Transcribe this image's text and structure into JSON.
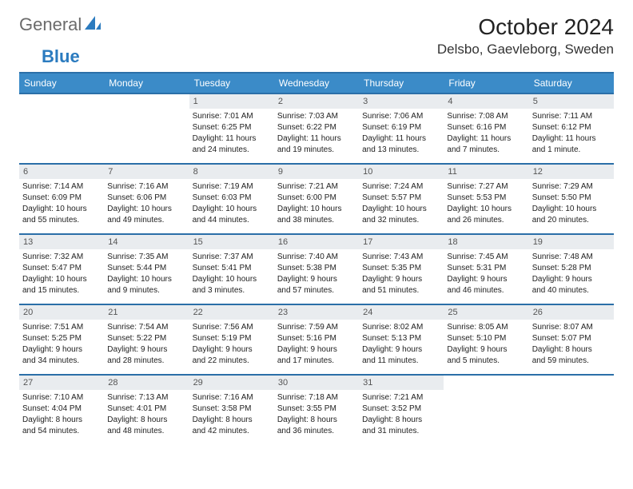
{
  "brand": {
    "name_part1": "General",
    "name_part2": "Blue"
  },
  "header": {
    "month_title": "October 2024",
    "location": "Delsbo, Gaevleborg, Sweden"
  },
  "colors": {
    "header_bg": "#3b8bc8",
    "header_border": "#2b6fa8",
    "daynum_bg": "#e9ecef",
    "logo_gray": "#6b6b6b",
    "logo_blue": "#2b7bbf"
  },
  "weekdays": [
    "Sunday",
    "Monday",
    "Tuesday",
    "Wednesday",
    "Thursday",
    "Friday",
    "Saturday"
  ],
  "weeks": [
    [
      null,
      null,
      {
        "n": "1",
        "sunrise": "Sunrise: 7:01 AM",
        "sunset": "Sunset: 6:25 PM",
        "d1": "Daylight: 11 hours",
        "d2": "and 24 minutes."
      },
      {
        "n": "2",
        "sunrise": "Sunrise: 7:03 AM",
        "sunset": "Sunset: 6:22 PM",
        "d1": "Daylight: 11 hours",
        "d2": "and 19 minutes."
      },
      {
        "n": "3",
        "sunrise": "Sunrise: 7:06 AM",
        "sunset": "Sunset: 6:19 PM",
        "d1": "Daylight: 11 hours",
        "d2": "and 13 minutes."
      },
      {
        "n": "4",
        "sunrise": "Sunrise: 7:08 AM",
        "sunset": "Sunset: 6:16 PM",
        "d1": "Daylight: 11 hours",
        "d2": "and 7 minutes."
      },
      {
        "n": "5",
        "sunrise": "Sunrise: 7:11 AM",
        "sunset": "Sunset: 6:12 PM",
        "d1": "Daylight: 11 hours",
        "d2": "and 1 minute."
      }
    ],
    [
      {
        "n": "6",
        "sunrise": "Sunrise: 7:14 AM",
        "sunset": "Sunset: 6:09 PM",
        "d1": "Daylight: 10 hours",
        "d2": "and 55 minutes."
      },
      {
        "n": "7",
        "sunrise": "Sunrise: 7:16 AM",
        "sunset": "Sunset: 6:06 PM",
        "d1": "Daylight: 10 hours",
        "d2": "and 49 minutes."
      },
      {
        "n": "8",
        "sunrise": "Sunrise: 7:19 AM",
        "sunset": "Sunset: 6:03 PM",
        "d1": "Daylight: 10 hours",
        "d2": "and 44 minutes."
      },
      {
        "n": "9",
        "sunrise": "Sunrise: 7:21 AM",
        "sunset": "Sunset: 6:00 PM",
        "d1": "Daylight: 10 hours",
        "d2": "and 38 minutes."
      },
      {
        "n": "10",
        "sunrise": "Sunrise: 7:24 AM",
        "sunset": "Sunset: 5:57 PM",
        "d1": "Daylight: 10 hours",
        "d2": "and 32 minutes."
      },
      {
        "n": "11",
        "sunrise": "Sunrise: 7:27 AM",
        "sunset": "Sunset: 5:53 PM",
        "d1": "Daylight: 10 hours",
        "d2": "and 26 minutes."
      },
      {
        "n": "12",
        "sunrise": "Sunrise: 7:29 AM",
        "sunset": "Sunset: 5:50 PM",
        "d1": "Daylight: 10 hours",
        "d2": "and 20 minutes."
      }
    ],
    [
      {
        "n": "13",
        "sunrise": "Sunrise: 7:32 AM",
        "sunset": "Sunset: 5:47 PM",
        "d1": "Daylight: 10 hours",
        "d2": "and 15 minutes."
      },
      {
        "n": "14",
        "sunrise": "Sunrise: 7:35 AM",
        "sunset": "Sunset: 5:44 PM",
        "d1": "Daylight: 10 hours",
        "d2": "and 9 minutes."
      },
      {
        "n": "15",
        "sunrise": "Sunrise: 7:37 AM",
        "sunset": "Sunset: 5:41 PM",
        "d1": "Daylight: 10 hours",
        "d2": "and 3 minutes."
      },
      {
        "n": "16",
        "sunrise": "Sunrise: 7:40 AM",
        "sunset": "Sunset: 5:38 PM",
        "d1": "Daylight: 9 hours",
        "d2": "and 57 minutes."
      },
      {
        "n": "17",
        "sunrise": "Sunrise: 7:43 AM",
        "sunset": "Sunset: 5:35 PM",
        "d1": "Daylight: 9 hours",
        "d2": "and 51 minutes."
      },
      {
        "n": "18",
        "sunrise": "Sunrise: 7:45 AM",
        "sunset": "Sunset: 5:31 PM",
        "d1": "Daylight: 9 hours",
        "d2": "and 46 minutes."
      },
      {
        "n": "19",
        "sunrise": "Sunrise: 7:48 AM",
        "sunset": "Sunset: 5:28 PM",
        "d1": "Daylight: 9 hours",
        "d2": "and 40 minutes."
      }
    ],
    [
      {
        "n": "20",
        "sunrise": "Sunrise: 7:51 AM",
        "sunset": "Sunset: 5:25 PM",
        "d1": "Daylight: 9 hours",
        "d2": "and 34 minutes."
      },
      {
        "n": "21",
        "sunrise": "Sunrise: 7:54 AM",
        "sunset": "Sunset: 5:22 PM",
        "d1": "Daylight: 9 hours",
        "d2": "and 28 minutes."
      },
      {
        "n": "22",
        "sunrise": "Sunrise: 7:56 AM",
        "sunset": "Sunset: 5:19 PM",
        "d1": "Daylight: 9 hours",
        "d2": "and 22 minutes."
      },
      {
        "n": "23",
        "sunrise": "Sunrise: 7:59 AM",
        "sunset": "Sunset: 5:16 PM",
        "d1": "Daylight: 9 hours",
        "d2": "and 17 minutes."
      },
      {
        "n": "24",
        "sunrise": "Sunrise: 8:02 AM",
        "sunset": "Sunset: 5:13 PM",
        "d1": "Daylight: 9 hours",
        "d2": "and 11 minutes."
      },
      {
        "n": "25",
        "sunrise": "Sunrise: 8:05 AM",
        "sunset": "Sunset: 5:10 PM",
        "d1": "Daylight: 9 hours",
        "d2": "and 5 minutes."
      },
      {
        "n": "26",
        "sunrise": "Sunrise: 8:07 AM",
        "sunset": "Sunset: 5:07 PM",
        "d1": "Daylight: 8 hours",
        "d2": "and 59 minutes."
      }
    ],
    [
      {
        "n": "27",
        "sunrise": "Sunrise: 7:10 AM",
        "sunset": "Sunset: 4:04 PM",
        "d1": "Daylight: 8 hours",
        "d2": "and 54 minutes."
      },
      {
        "n": "28",
        "sunrise": "Sunrise: 7:13 AM",
        "sunset": "Sunset: 4:01 PM",
        "d1": "Daylight: 8 hours",
        "d2": "and 48 minutes."
      },
      {
        "n": "29",
        "sunrise": "Sunrise: 7:16 AM",
        "sunset": "Sunset: 3:58 PM",
        "d1": "Daylight: 8 hours",
        "d2": "and 42 minutes."
      },
      {
        "n": "30",
        "sunrise": "Sunrise: 7:18 AM",
        "sunset": "Sunset: 3:55 PM",
        "d1": "Daylight: 8 hours",
        "d2": "and 36 minutes."
      },
      {
        "n": "31",
        "sunrise": "Sunrise: 7:21 AM",
        "sunset": "Sunset: 3:52 PM",
        "d1": "Daylight: 8 hours",
        "d2": "and 31 minutes."
      },
      null,
      null
    ]
  ]
}
